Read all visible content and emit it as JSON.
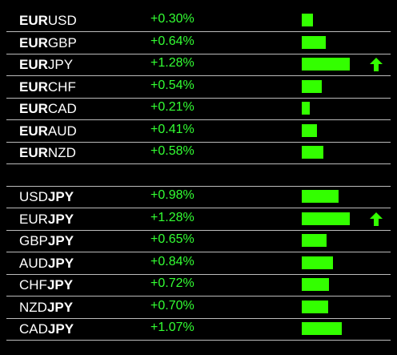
{
  "groups": [
    {
      "rows": [
        {
          "base": "EUR",
          "quote": "USD",
          "bold": "base",
          "value": 0.3,
          "label": "+0.30%"
        },
        {
          "base": "EUR",
          "quote": "GBP",
          "bold": "base",
          "value": 0.64,
          "label": "+0.64%"
        },
        {
          "base": "EUR",
          "quote": "JPY",
          "bold": "base",
          "value": 1.28,
          "label": "+1.28%",
          "arrow": true
        },
        {
          "base": "EUR",
          "quote": "CHF",
          "bold": "base",
          "value": 0.54,
          "label": "+0.54%"
        },
        {
          "base": "EUR",
          "quote": "CAD",
          "bold": "base",
          "value": 0.21,
          "label": "+0.21%"
        },
        {
          "base": "EUR",
          "quote": "AUD",
          "bold": "base",
          "value": 0.41,
          "label": "+0.41%"
        },
        {
          "base": "EUR",
          "quote": "NZD",
          "bold": "base",
          "value": 0.58,
          "label": "+0.58%"
        }
      ]
    },
    {
      "rows": [
        {
          "base": "USD",
          "quote": "JPY",
          "bold": "quote",
          "value": 0.98,
          "label": "+0.98%"
        },
        {
          "base": "EUR",
          "quote": "JPY",
          "bold": "quote",
          "value": 1.28,
          "label": "+1.28%",
          "arrow": true
        },
        {
          "base": "GBP",
          "quote": "JPY",
          "bold": "quote",
          "value": 0.65,
          "label": "+0.65%"
        },
        {
          "base": "AUD",
          "quote": "JPY",
          "bold": "quote",
          "value": 0.84,
          "label": "+0.84%"
        },
        {
          "base": "CHF",
          "quote": "JPY",
          "bold": "quote",
          "value": 0.72,
          "label": "+0.72%"
        },
        {
          "base": "NZD",
          "quote": "JPY",
          "bold": "quote",
          "value": 0.7,
          "label": "+0.70%"
        },
        {
          "base": "CAD",
          "quote": "JPY",
          "bold": "quote",
          "value": 1.07,
          "label": "+1.07%"
        }
      ]
    }
  ]
}
